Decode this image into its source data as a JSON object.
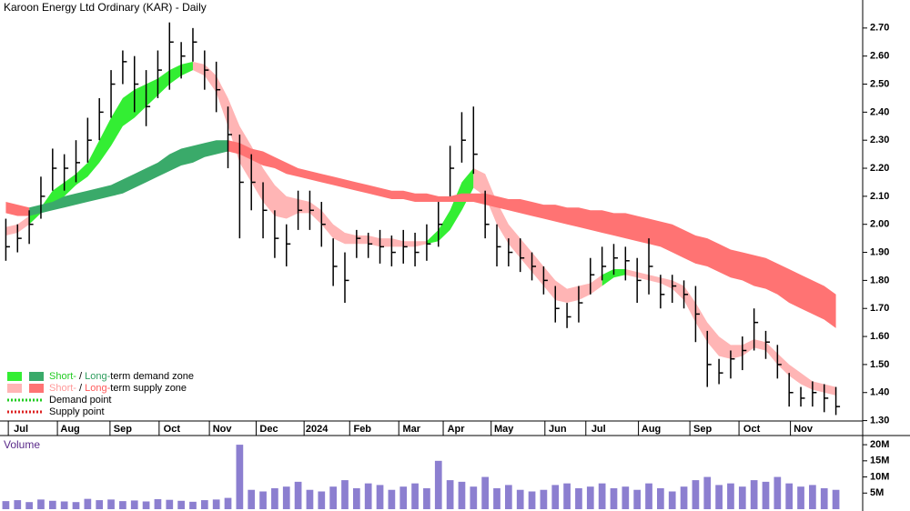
{
  "chart_data": {
    "type": "ohlc",
    "title": "Karoon Energy Ltd Ordinary (KAR) - Daily",
    "ylim": [
      1.25,
      2.8
    ],
    "yticks": [
      {
        "value": 1.3,
        "label": "1.30"
      },
      {
        "value": 1.4,
        "label": "1.40"
      },
      {
        "value": 1.5,
        "label": "1.50"
      },
      {
        "value": 1.6,
        "label": "1.60"
      },
      {
        "value": 1.7,
        "label": "1.70"
      },
      {
        "value": 1.8,
        "label": "1.80"
      },
      {
        "value": 1.9,
        "label": "1.90"
      },
      {
        "value": 2.0,
        "label": "2.00"
      },
      {
        "value": 2.1,
        "label": "2.10"
      },
      {
        "value": 2.2,
        "label": "2.20"
      },
      {
        "value": 2.3,
        "label": "2.30"
      },
      {
        "value": 2.4,
        "label": "2.40"
      },
      {
        "value": 2.5,
        "label": "2.50"
      },
      {
        "value": 2.6,
        "label": "2.60"
      },
      {
        "value": 2.7,
        "label": "2.70"
      }
    ],
    "xlim": [
      0,
      72
    ],
    "xticks": [
      {
        "value": 1.8,
        "label": "Jul"
      },
      {
        "value": 6.0,
        "label": "Aug"
      },
      {
        "value": 10.5,
        "label": "Sep"
      },
      {
        "value": 14.7,
        "label": "Oct"
      },
      {
        "value": 19.0,
        "label": "Nov"
      },
      {
        "value": 23.0,
        "label": "Dec"
      },
      {
        "value": 27.1,
        "label": "2024"
      },
      {
        "value": 31.0,
        "label": "Feb"
      },
      {
        "value": 35.2,
        "label": "Mar"
      },
      {
        "value": 39.0,
        "label": "Apr"
      },
      {
        "value": 43.1,
        "label": "May"
      },
      {
        "value": 47.7,
        "label": "Jun"
      },
      {
        "value": 51.2,
        "label": "Jul"
      },
      {
        "value": 55.7,
        "label": "Aug"
      },
      {
        "value": 60.1,
        "label": "Sep"
      },
      {
        "value": 64.3,
        "label": "Oct"
      },
      {
        "value": 68.7,
        "label": "Nov"
      }
    ],
    "color": "#000000",
    "high": [
      2.02,
      2.0,
      2.05,
      2.17,
      2.27,
      2.25,
      2.3,
      2.38,
      2.45,
      2.55,
      2.62,
      2.6,
      2.55,
      2.62,
      2.72,
      2.65,
      2.7,
      2.62,
      2.58,
      2.42,
      2.32,
      2.25,
      2.15,
      2.05,
      2.0,
      2.12,
      2.12,
      2.08,
      1.95,
      1.9,
      1.98,
      1.97,
      1.98,
      1.96,
      1.98,
      1.97,
      2.0,
      2.08,
      2.28,
      2.4,
      2.42,
      2.12,
      2.0,
      1.95,
      1.95,
      1.9,
      1.85,
      1.78,
      1.72,
      1.78,
      1.88,
      1.92,
      1.93,
      1.92,
      1.88,
      1.95,
      1.82,
      1.82,
      1.8,
      1.78,
      1.62,
      1.52,
      1.55,
      1.6,
      1.7,
      1.62,
      1.57,
      1.47,
      1.42,
      1.44,
      1.43,
      1.42
    ],
    "low": [
      1.87,
      1.9,
      1.93,
      2.02,
      2.12,
      2.12,
      2.15,
      2.22,
      2.3,
      2.38,
      2.5,
      2.4,
      2.35,
      2.45,
      2.48,
      2.52,
      2.58,
      2.48,
      2.4,
      2.2,
      1.95,
      2.05,
      1.95,
      1.88,
      1.85,
      1.98,
      1.98,
      1.92,
      1.78,
      1.72,
      1.88,
      1.88,
      1.86,
      1.85,
      1.86,
      1.85,
      1.87,
      1.92,
      2.1,
      2.22,
      2.18,
      1.95,
      1.85,
      1.85,
      1.83,
      1.8,
      1.75,
      1.65,
      1.63,
      1.65,
      1.75,
      1.8,
      1.82,
      1.8,
      1.72,
      1.75,
      1.7,
      1.72,
      1.7,
      1.58,
      1.42,
      1.43,
      1.45,
      1.48,
      1.55,
      1.52,
      1.45,
      1.35,
      1.35,
      1.35,
      1.33,
      1.32
    ],
    "close": [
      1.92,
      1.95,
      2.0,
      2.1,
      2.2,
      2.2,
      2.22,
      2.3,
      2.4,
      2.5,
      2.58,
      2.5,
      2.42,
      2.55,
      2.65,
      2.6,
      2.65,
      2.55,
      2.48,
      2.32,
      2.15,
      2.15,
      2.05,
      1.95,
      1.93,
      2.05,
      2.05,
      2.0,
      1.85,
      1.8,
      1.95,
      1.93,
      1.92,
      1.9,
      1.92,
      1.9,
      1.93,
      2.0,
      2.2,
      2.3,
      2.25,
      2.0,
      1.92,
      1.9,
      1.88,
      1.85,
      1.8,
      1.7,
      1.67,
      1.72,
      1.82,
      1.85,
      1.88,
      1.87,
      1.8,
      1.85,
      1.75,
      1.78,
      1.75,
      1.68,
      1.5,
      1.47,
      1.52,
      1.55,
      1.65,
      1.58,
      1.5,
      1.4,
      1.38,
      1.4,
      1.38,
      1.35
    ],
    "bands": [
      {
        "color": "#33ee33",
        "upper": [
          null,
          null,
          2.03,
          2.06,
          2.12,
          2.15,
          2.18,
          2.22,
          2.3,
          2.38,
          2.45,
          2.48,
          2.5,
          2.52,
          2.55,
          2.57,
          2.58,
          null,
          null,
          null,
          null,
          null,
          null,
          null,
          null,
          null,
          null,
          null,
          null,
          null,
          null,
          null,
          null,
          null,
          null,
          null,
          1.94,
          1.98,
          2.05,
          2.15,
          2.2,
          null,
          null,
          null,
          null,
          null,
          null,
          null,
          null,
          null,
          null,
          1.82,
          1.84,
          1.84,
          null,
          null,
          null,
          null,
          null,
          null,
          null,
          null,
          null,
          null,
          null,
          null,
          null,
          null,
          null,
          null,
          null,
          null
        ],
        "lower": [
          null,
          null,
          2.0,
          2.04,
          2.07,
          2.1,
          2.14,
          2.17,
          2.22,
          2.28,
          2.35,
          2.38,
          2.42,
          2.46,
          2.5,
          2.53,
          2.55,
          null,
          null,
          null,
          null,
          null,
          null,
          null,
          null,
          null,
          null,
          null,
          null,
          null,
          null,
          null,
          null,
          null,
          null,
          null,
          1.93,
          1.94,
          1.98,
          2.05,
          2.13,
          null,
          null,
          null,
          null,
          null,
          null,
          null,
          null,
          null,
          null,
          1.78,
          1.81,
          1.82,
          null,
          null,
          null,
          null,
          null,
          null,
          null,
          null,
          null,
          null,
          null,
          null,
          null,
          null,
          null,
          null,
          null,
          null
        ]
      },
      {
        "color": "#ffb5b5",
        "upper": [
          1.99,
          2.0,
          2.03,
          null,
          null,
          null,
          null,
          null,
          null,
          null,
          null,
          null,
          null,
          null,
          null,
          null,
          2.58,
          2.57,
          2.53,
          2.45,
          2.35,
          2.28,
          2.2,
          2.14,
          2.1,
          2.09,
          2.08,
          2.05,
          2.0,
          1.97,
          1.96,
          1.96,
          1.95,
          1.95,
          1.94,
          1.94,
          1.94,
          null,
          null,
          null,
          2.2,
          2.18,
          2.08,
          2.0,
          1.95,
          1.9,
          1.85,
          1.8,
          1.77,
          1.78,
          1.79,
          1.82,
          null,
          1.84,
          1.83,
          1.82,
          1.81,
          1.8,
          1.78,
          1.72,
          1.65,
          1.6,
          1.57,
          1.57,
          1.59,
          1.58,
          1.54,
          1.5,
          1.47,
          1.44,
          1.43,
          1.42
        ],
        "lower": [
          1.96,
          1.97,
          2.0,
          null,
          null,
          null,
          null,
          null,
          null,
          null,
          null,
          null,
          null,
          null,
          null,
          null,
          2.55,
          2.53,
          2.47,
          2.35,
          2.22,
          2.15,
          2.08,
          2.03,
          2.02,
          2.04,
          2.04,
          2.0,
          1.95,
          1.93,
          1.93,
          1.93,
          1.92,
          1.92,
          1.92,
          1.92,
          1.93,
          null,
          null,
          null,
          2.13,
          2.1,
          2.0,
          1.93,
          1.88,
          1.83,
          1.78,
          1.73,
          1.72,
          1.73,
          1.75,
          1.78,
          null,
          1.82,
          1.81,
          1.8,
          1.79,
          1.77,
          1.73,
          1.65,
          1.58,
          1.53,
          1.52,
          1.53,
          1.56,
          1.55,
          1.5,
          1.46,
          1.43,
          1.41,
          1.4,
          1.39
        ]
      },
      {
        "color": "#3aaa6a",
        "upper": [
          null,
          null,
          2.06,
          2.07,
          2.08,
          2.1,
          2.11,
          2.12,
          2.13,
          2.14,
          2.16,
          2.18,
          2.2,
          2.22,
          2.25,
          2.27,
          2.28,
          2.29,
          2.3,
          2.3,
          null,
          null,
          null,
          null,
          null,
          null,
          null,
          null,
          null,
          null,
          null,
          null,
          null,
          null,
          null,
          null,
          null,
          null,
          null,
          null,
          null,
          null,
          null,
          null,
          null,
          null,
          null,
          null,
          null,
          null,
          null,
          null,
          null,
          null,
          null,
          null,
          null,
          null,
          null,
          null,
          null,
          null,
          null,
          null,
          null,
          null,
          null,
          null,
          null,
          null,
          null,
          null
        ],
        "lower": [
          null,
          null,
          2.03,
          2.04,
          2.05,
          2.06,
          2.07,
          2.08,
          2.09,
          2.1,
          2.11,
          2.13,
          2.15,
          2.17,
          2.19,
          2.21,
          2.22,
          2.24,
          2.25,
          2.26,
          null,
          null,
          null,
          null,
          null,
          null,
          null,
          null,
          null,
          null,
          null,
          null,
          null,
          null,
          null,
          null,
          null,
          null,
          null,
          null,
          null,
          null,
          null,
          null,
          null,
          null,
          null,
          null,
          null,
          null,
          null,
          null,
          null,
          null,
          null,
          null,
          null,
          null,
          null,
          null,
          null,
          null,
          null,
          null,
          null,
          null,
          null,
          null,
          null,
          null,
          null,
          null
        ]
      },
      {
        "color": "#ff7373",
        "upper": [
          2.08,
          2.07,
          2.06,
          null,
          null,
          null,
          null,
          null,
          null,
          null,
          null,
          null,
          null,
          null,
          null,
          null,
          null,
          null,
          null,
          2.3,
          2.29,
          2.27,
          2.26,
          2.24,
          2.22,
          2.2,
          2.19,
          2.18,
          2.17,
          2.16,
          2.15,
          2.14,
          2.13,
          2.12,
          2.12,
          2.11,
          2.11,
          2.1,
          2.1,
          2.11,
          2.11,
          2.11,
          2.1,
          2.09,
          2.09,
          2.08,
          2.07,
          2.07,
          2.06,
          2.06,
          2.05,
          2.05,
          2.04,
          2.04,
          2.03,
          2.02,
          2.01,
          2.0,
          1.98,
          1.96,
          1.95,
          1.93,
          1.91,
          1.9,
          1.89,
          1.88,
          1.86,
          1.84,
          1.82,
          1.8,
          1.78,
          1.75
        ],
        "lower": [
          2.04,
          2.03,
          2.03,
          null,
          null,
          null,
          null,
          null,
          null,
          null,
          null,
          null,
          null,
          null,
          null,
          null,
          null,
          null,
          null,
          2.26,
          2.25,
          2.23,
          2.21,
          2.2,
          2.18,
          2.17,
          2.16,
          2.15,
          2.14,
          2.13,
          2.12,
          2.11,
          2.1,
          2.09,
          2.09,
          2.08,
          2.08,
          2.08,
          2.08,
          2.08,
          2.08,
          2.07,
          2.06,
          2.05,
          2.04,
          2.03,
          2.02,
          2.01,
          2.0,
          1.99,
          1.98,
          1.97,
          1.96,
          1.95,
          1.94,
          1.93,
          1.92,
          1.9,
          1.88,
          1.86,
          1.85,
          1.83,
          1.81,
          1.8,
          1.78,
          1.77,
          1.75,
          1.72,
          1.7,
          1.68,
          1.66,
          1.63
        ]
      }
    ],
    "legend": [
      {
        "parts": [
          "Short-",
          " / ",
          "Long-",
          "term demand zone"
        ]
      },
      {
        "parts": [
          "Short-",
          " / ",
          "Long-",
          "term supply zone"
        ]
      },
      {
        "parts": [
          "Demand point"
        ],
        "color": "#22cc22"
      },
      {
        "parts": [
          "Supply point"
        ],
        "color": "#dd2222"
      }
    ],
    "volume": {
      "title": "Volume",
      "color": "#8c7fd0",
      "ylim": [
        0,
        22000000
      ],
      "yticks": [
        {
          "value": 5000000,
          "label": "5M"
        },
        {
          "value": 10000000,
          "label": "10M"
        },
        {
          "value": 15000000,
          "label": "15M"
        },
        {
          "value": 20000000,
          "label": "20M"
        }
      ],
      "values": [
        2500000,
        2800000,
        2200000,
        3000000,
        2600000,
        2400000,
        2200000,
        3200000,
        2800000,
        3000000,
        2500000,
        2700000,
        2400000,
        3100000,
        2900000,
        2600000,
        2300000,
        2800000,
        3000000,
        3500000,
        20000000,
        6000000,
        5500000,
        6500000,
        7000000,
        8500000,
        6000000,
        5500000,
        7000000,
        9000000,
        6500000,
        8000000,
        7500000,
        6000000,
        7000000,
        8000000,
        6500000,
        15000000,
        9000000,
        8500000,
        7000000,
        10000000,
        6500000,
        7500000,
        6000000,
        5500000,
        6000000,
        7500000,
        8000000,
        6500000,
        7000000,
        8000000,
        6500000,
        7000000,
        6000000,
        8000000,
        6500000,
        5500000,
        7000000,
        9000000,
        10000000,
        7500000,
        8000000,
        7000000,
        9000000,
        8500000,
        10000000,
        8000000,
        7000000,
        7500000,
        6500000,
        6000000
      ]
    }
  }
}
